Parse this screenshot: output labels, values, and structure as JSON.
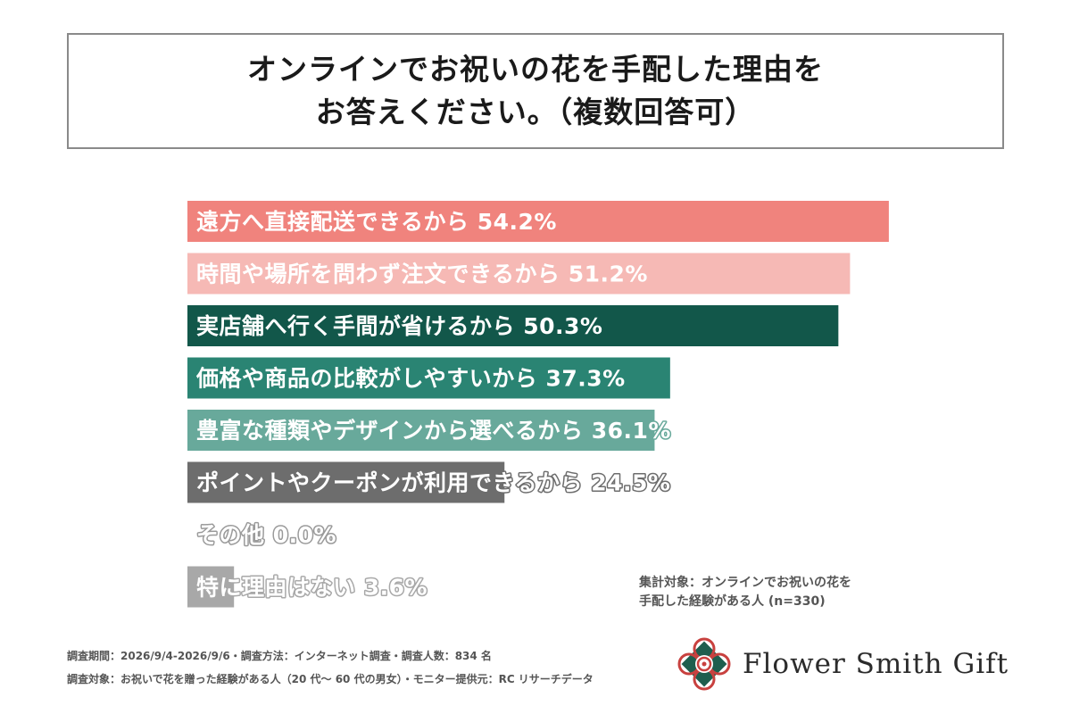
{
  "title": {
    "line1": "オンラインでお祝いの花を手配した理由を",
    "line2": "お答えください。（複数回答可）"
  },
  "chart_data": {
    "type": "bar",
    "orientation": "horizontal",
    "xlim": [
      0,
      60
    ],
    "grid": false,
    "bars": [
      {
        "label": "遠方へ直接配送できるから",
        "value": 54.2,
        "value_label": "54.2%",
        "color": "#f0837d"
      },
      {
        "label": "時間や場所を問わず注文できるから",
        "value": 51.2,
        "value_label": "51.2%",
        "color": "#f6b9b5"
      },
      {
        "label": "実店舗へ行く手間が省けるから",
        "value": 50.3,
        "value_label": "50.3%",
        "color": "#12574a"
      },
      {
        "label": "価格や商品の比較がしやすいから",
        "value": 37.3,
        "value_label": "37.3%",
        "color": "#2a8473"
      },
      {
        "label": "豊富な種類やデザインから選べるから",
        "value": 36.1,
        "value_label": "36.1%",
        "color": "#68a99b"
      },
      {
        "label": "ポイントやクーポンが利用できるから",
        "value": 24.5,
        "value_label": "24.5%",
        "color": "#6d6d6d"
      },
      {
        "label": "その他",
        "value": 0.0,
        "value_label": "0.0%",
        "color": "#9a9a9a"
      },
      {
        "label": "特に理由はない",
        "value": 3.6,
        "value_label": "3.6%",
        "color": "#a8a8a8"
      }
    ]
  },
  "note": {
    "line1": "集計対象：オンラインでお祝いの花を",
    "line2": "手配した経験がある人 (n=330)"
  },
  "footer": {
    "line1": "調査期間：2026/9/4-2026/9/6・調査方法：インターネット調査・調査人数：834 名",
    "line2": "調査対象：お祝いで花を贈った経験がある人（20 代～ 60 代の男女）・モニター提供元：RC リサーチデータ"
  },
  "brand": {
    "name": "Flower Smith Gift",
    "logo_icon": "flower-logo-icon",
    "colors": {
      "red": "#c8413f",
      "green": "#1e5e4e"
    }
  }
}
